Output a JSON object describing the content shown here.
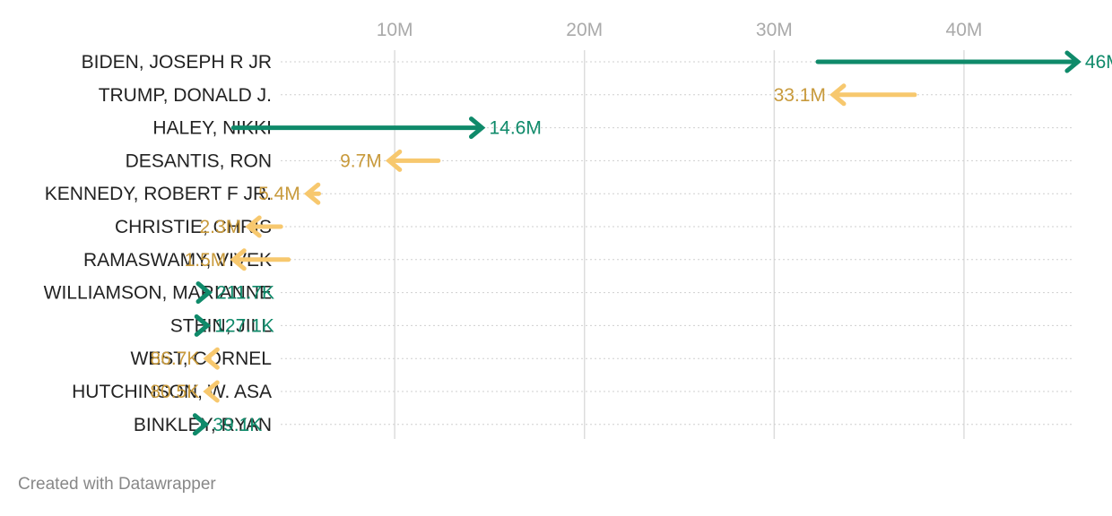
{
  "chart_data": {
    "type": "arrow",
    "x_ticks": [
      {
        "value": 10000000,
        "label": "10M"
      },
      {
        "value": 20000000,
        "label": "20M"
      },
      {
        "value": 30000000,
        "label": "30M"
      },
      {
        "value": 40000000,
        "label": "40M"
      }
    ],
    "xlim": [
      -10800000,
      47800000
    ],
    "grid": true,
    "colors": {
      "increase": "#0f8a6a",
      "decrease": "#f7c86e",
      "increase_label": "#0f8a6a",
      "decrease_label": "#c89a3c"
    },
    "rows": [
      {
        "name": "BIDEN, JOSEPH R JR",
        "start": 32300000,
        "end": 46000000,
        "label": "46M"
      },
      {
        "name": "TRUMP, DONALD J.",
        "start": 37400000,
        "end": 33100000,
        "label": "33.1M"
      },
      {
        "name": "HALEY, NIKKI",
        "start": 1500000,
        "end": 14600000,
        "label": "14.6M"
      },
      {
        "name": "DESANTIS, RON",
        "start": 12300000,
        "end": 9700000,
        "label": "9.7M"
      },
      {
        "name": "KENNEDY, ROBERT F JR.",
        "start": 6000000,
        "end": 5400000,
        "label": "5.4M"
      },
      {
        "name": "CHRISTIE, CHRIS",
        "start": 4000000,
        "end": 2300000,
        "label": "2.3M"
      },
      {
        "name": "RAMASWAMY, VIVEK",
        "start": 4400000,
        "end": 1500000,
        "label": "1.5M"
      },
      {
        "name": "WILLIAMSON, MARIANNE",
        "start": 50000,
        "end": 211700,
        "label": "211.7K"
      },
      {
        "name": "STEIN, JILL",
        "start": 20000,
        "end": 127100,
        "label": "127.1K"
      },
      {
        "name": "WEST, CORNEL",
        "start": 120000,
        "end": 86700,
        "label": "86.7K"
      },
      {
        "name": "HUTCHINSON, W. ASA",
        "start": 110000,
        "end": 80500,
        "label": "80.5K"
      },
      {
        "name": "BINKLEY, RYAN",
        "start": 10000,
        "end": 39100,
        "label": "39.1K"
      }
    ]
  },
  "footer": {
    "credit": "Created with Datawrapper"
  }
}
